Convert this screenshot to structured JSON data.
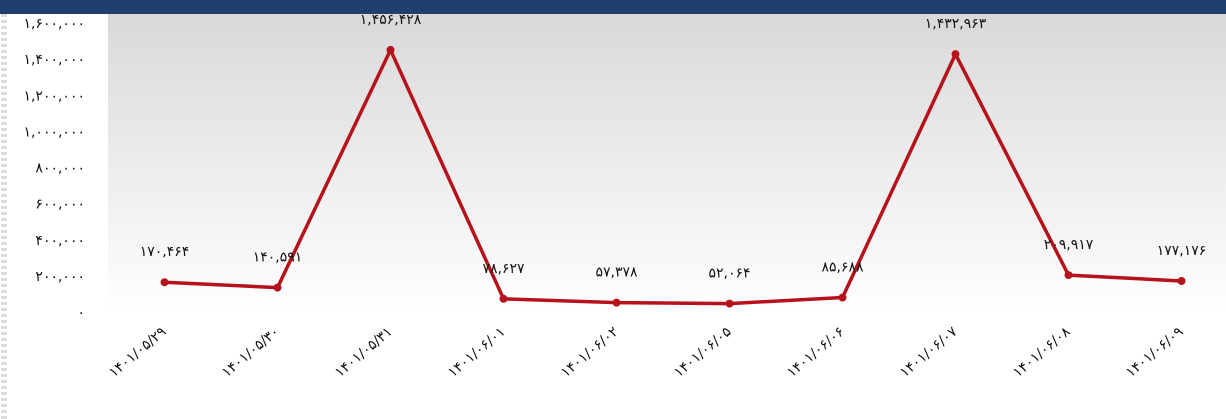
{
  "chart_data": {
    "type": "line",
    "categories": [
      "۱۴۰۱/۰۵/۲۹",
      "۱۴۰۱/۰۵/۳۰",
      "۱۴۰۱/۰۵/۳۱",
      "۱۴۰۱/۰۶/۰۱",
      "۱۴۰۱/۰۶/۰۲",
      "۱۴۰۱/۰۶/۰۵",
      "۱۴۰۱/۰۶/۰۶",
      "۱۴۰۱/۰۶/۰۷",
      "۱۴۰۱/۰۶/۰۸",
      "۱۴۰۱/۰۶/۰۹"
    ],
    "values": [
      170464,
      140591,
      1456428,
      78627,
      57378,
      52064,
      85688,
      1432963,
      209917,
      177176
    ],
    "value_labels": [
      "۱۷۰,۴۶۴",
      "۱۴۰,۵۹۱",
      "۱,۴۵۶,۴۲۸",
      "۷۸,۶۲۷",
      "۵۷,۳۷۸",
      "۵۲,۰۶۴",
      "۸۵,۶۸۸",
      "۱,۴۳۲,۹۶۳",
      "۲۰۹,۹۱۷",
      "۱۷۷,۱۷۶"
    ],
    "color": "#b5121b",
    "ylim": [
      0,
      1600000
    ],
    "yticks": [
      {
        "value": 0,
        "label": "۰"
      },
      {
        "value": 200000,
        "label": "۲۰۰,۰۰۰"
      },
      {
        "value": 400000,
        "label": "۴۰۰,۰۰۰"
      },
      {
        "value": 600000,
        "label": "۶۰۰,۰۰۰"
      },
      {
        "value": 800000,
        "label": "۸۰۰,۰۰۰"
      },
      {
        "value": 1000000,
        "label": "۱,۰۰۰,۰۰۰"
      },
      {
        "value": 1200000,
        "label": "۱,۲۰۰,۰۰۰"
      },
      {
        "value": 1400000,
        "label": "۱,۴۰۰,۰۰۰"
      },
      {
        "value": 1600000,
        "label": "۱,۶۰۰,۰۰۰"
      }
    ],
    "grid": false
  }
}
